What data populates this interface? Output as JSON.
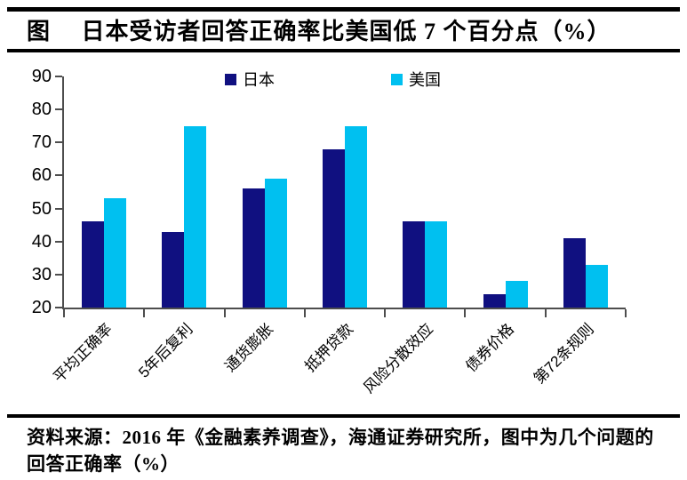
{
  "title": "图　 日本受访者回答正确率比美国低 7 个百分点（%）",
  "source_note": "资料来源：2016 年《金融素养调查》，海通证券研究所，图中为几个问题的回答正确率（%）",
  "colors": {
    "japan_bar": "#101080",
    "usa_bar": "#00C0F0",
    "axis": "#4d4d4d",
    "rule": "#000000"
  },
  "chart_data": {
    "type": "bar",
    "title": "日本受访者回答正确率比美国低7个百分点（%）",
    "categories": [
      "平均正确率",
      "5年后复利",
      "通货膨胀",
      "抵押贷款",
      "风险分散效应",
      "债券价格",
      "第72条规则"
    ],
    "series": [
      {
        "name": "日本",
        "color": "#101080",
        "values": [
          46,
          43,
          56,
          68,
          46,
          24,
          41
        ]
      },
      {
        "name": "美国",
        "color": "#00C0F0",
        "values": [
          53,
          75,
          59,
          75,
          46,
          28,
          33
        ]
      }
    ],
    "xlabel": "",
    "ylabel": "",
    "ylim": [
      20,
      90
    ],
    "yticks": [
      20,
      30,
      40,
      50,
      60,
      70,
      80,
      90
    ],
    "grid": false,
    "legend_position": "top-center"
  }
}
